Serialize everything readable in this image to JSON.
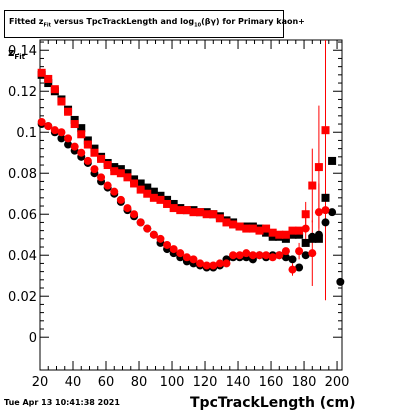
{
  "title": {
    "prefix": "Fitted  z",
    "prefix_sub": "Fit",
    "middle": " versus TpcTrackLength and log",
    "log_sub": "10",
    "suffix": "(βγ) for Primary kaon+"
  },
  "timestamp": "Tue Apr 13 10:41:38 2021",
  "chart_data": {
    "type": "scatter",
    "xlabel": "TpcTrackLength (cm)",
    "ylabel": "z",
    "ylabel_sub": "Fit",
    "xlim": [
      20,
      203
    ],
    "ylim": [
      -0.016,
      0.145
    ],
    "x_ticks": [
      20,
      40,
      60,
      80,
      100,
      120,
      140,
      160,
      180,
      200
    ],
    "y_ticks": [
      0,
      0.02,
      0.04,
      0.06,
      0.08,
      0.1,
      0.12,
      0.14
    ],
    "y_tick_labels": [
      "0",
      "0.02",
      "0.04",
      "0.06",
      "0.08",
      "0.1",
      "0.12",
      "0.14"
    ],
    "grid": false,
    "series": [
      {
        "marker": "square",
        "color": "#000000",
        "x": [
          21,
          25,
          29,
          33,
          37,
          41,
          45,
          49,
          53,
          57,
          61,
          65,
          69,
          73,
          77,
          81,
          85,
          89,
          93,
          97,
          101,
          105,
          109,
          113,
          117,
          121,
          125,
          129,
          133,
          137,
          141,
          145,
          149,
          153,
          157,
          161,
          165,
          169,
          173,
          177,
          181,
          185,
          189,
          193,
          197
        ],
        "y": [
          0.128,
          0.124,
          0.12,
          0.116,
          0.111,
          0.106,
          0.102,
          0.096,
          0.092,
          0.088,
          0.085,
          0.083,
          0.082,
          0.08,
          0.077,
          0.075,
          0.073,
          0.071,
          0.069,
          0.067,
          0.065,
          0.063,
          0.062,
          0.062,
          0.061,
          0.061,
          0.06,
          0.059,
          0.057,
          0.056,
          0.054,
          0.054,
          0.054,
          0.053,
          0.051,
          0.049,
          0.049,
          0.048,
          0.05,
          0.05,
          0.046,
          0.048,
          0.048,
          0.068,
          0.086
        ]
      },
      {
        "marker": "circle",
        "color": "#000000",
        "x": [
          21,
          25,
          29,
          33,
          37,
          41,
          45,
          49,
          53,
          57,
          61,
          65,
          69,
          73,
          77,
          81,
          85,
          89,
          93,
          97,
          101,
          105,
          109,
          113,
          117,
          121,
          125,
          129,
          133,
          137,
          141,
          145,
          149,
          153,
          157,
          161,
          165,
          169,
          173,
          177,
          181,
          185,
          189,
          193,
          197,
          202
        ],
        "y": [
          0.104,
          0.103,
          0.1,
          0.097,
          0.094,
          0.091,
          0.088,
          0.085,
          0.08,
          0.076,
          0.073,
          0.07,
          0.066,
          0.062,
          0.059,
          0.056,
          0.053,
          0.05,
          0.046,
          0.043,
          0.041,
          0.039,
          0.037,
          0.036,
          0.035,
          0.034,
          0.034,
          0.035,
          0.038,
          0.039,
          0.039,
          0.039,
          0.038,
          0.04,
          0.039,
          0.04,
          0.04,
          0.039,
          0.038,
          0.034,
          0.04,
          0.049,
          0.05,
          0.056,
          0.061,
          0.027
        ]
      },
      {
        "marker": "square",
        "color": "#ff0000",
        "x": [
          21,
          25,
          29,
          33,
          37,
          41,
          45,
          49,
          53,
          57,
          61,
          65,
          69,
          73,
          77,
          81,
          85,
          89,
          93,
          97,
          101,
          105,
          109,
          113,
          117,
          121,
          125,
          129,
          133,
          137,
          141,
          145,
          149,
          153,
          157,
          161,
          165,
          169,
          173,
          177,
          181,
          185,
          189,
          193
        ],
        "y": [
          0.129,
          0.126,
          0.121,
          0.115,
          0.11,
          0.104,
          0.099,
          0.094,
          0.09,
          0.087,
          0.084,
          0.081,
          0.08,
          0.078,
          0.075,
          0.072,
          0.07,
          0.068,
          0.067,
          0.065,
          0.063,
          0.062,
          0.062,
          0.061,
          0.061,
          0.06,
          0.06,
          0.058,
          0.056,
          0.055,
          0.054,
          0.053,
          0.053,
          0.052,
          0.053,
          0.051,
          0.05,
          0.05,
          0.052,
          0.052,
          0.06,
          0.074,
          0.083,
          0.101
        ],
        "err": [
          0,
          0,
          0,
          0,
          0,
          0,
          0,
          0,
          0,
          0,
          0,
          0,
          0,
          0,
          0,
          0,
          0,
          0,
          0,
          0,
          0,
          0,
          0,
          0,
          0,
          0,
          0,
          0,
          0,
          0,
          0,
          0,
          0,
          0,
          0,
          0,
          0,
          0,
          0,
          0,
          0.006,
          0.018,
          0.03,
          0.082
        ]
      },
      {
        "marker": "circle",
        "color": "#ff0000",
        "x": [
          21,
          25,
          29,
          33,
          37,
          41,
          45,
          49,
          53,
          57,
          61,
          65,
          69,
          73,
          77,
          81,
          85,
          89,
          93,
          97,
          101,
          105,
          109,
          113,
          117,
          121,
          125,
          129,
          133,
          137,
          141,
          145,
          149,
          153,
          157,
          161,
          165,
          169,
          173,
          177,
          181,
          185,
          189,
          193
        ],
        "y": [
          0.105,
          0.103,
          0.101,
          0.1,
          0.097,
          0.093,
          0.09,
          0.086,
          0.082,
          0.078,
          0.074,
          0.071,
          0.067,
          0.063,
          0.06,
          0.056,
          0.053,
          0.05,
          0.048,
          0.045,
          0.043,
          0.041,
          0.039,
          0.038,
          0.036,
          0.035,
          0.035,
          0.036,
          0.036,
          0.04,
          0.04,
          0.041,
          0.04,
          0.04,
          0.04,
          0.039,
          0.04,
          0.042,
          0.033,
          0.042,
          0.053,
          0.041,
          0.061,
          0.062
        ],
        "err": [
          0,
          0,
          0,
          0,
          0,
          0,
          0,
          0,
          0,
          0,
          0,
          0,
          0,
          0,
          0,
          0,
          0,
          0,
          0,
          0,
          0,
          0,
          0,
          0,
          0,
          0,
          0,
          0,
          0,
          0,
          0,
          0,
          0,
          0,
          0,
          0,
          0,
          0,
          0.003,
          0.004,
          0.006,
          0.016,
          0.014,
          0.044
        ]
      }
    ]
  }
}
